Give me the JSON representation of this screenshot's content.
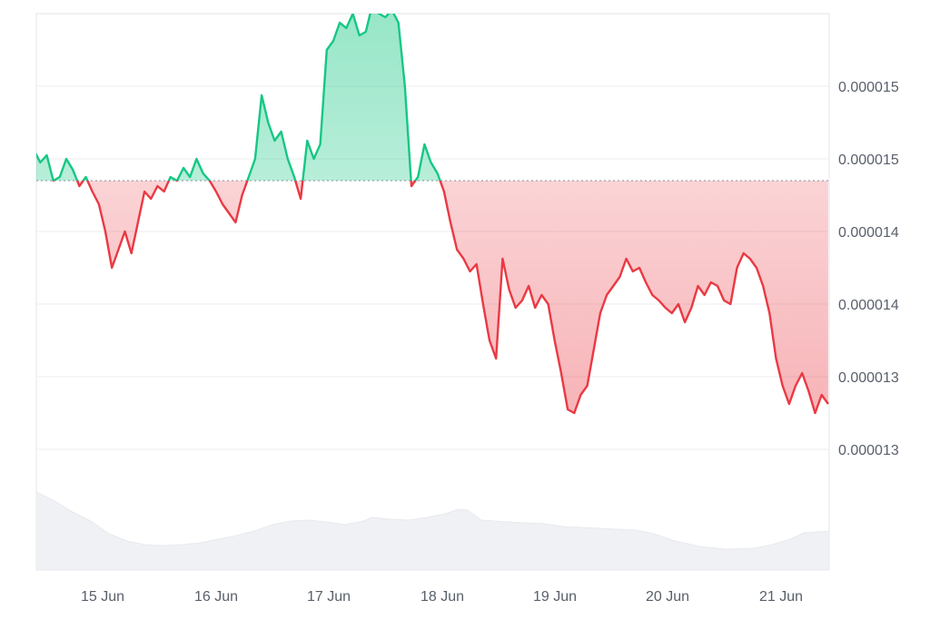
{
  "chart_data": {
    "type": "area",
    "title": "",
    "xlabel": "",
    "ylabel": "",
    "x_tick_labels": [
      "15 Jun",
      "16 Jun",
      "17 Jun",
      "18 Jun",
      "19 Jun",
      "20 Jun",
      "21 Jun"
    ],
    "y_tick_labels": [
      "0.000015",
      "0.000015",
      "0.000014",
      "0.000014",
      "0.000013",
      "0.000013"
    ],
    "y_tick_values": [
      1.52e-05,
      1.48e-05,
      1.44e-05,
      1.4e-05,
      1.36e-05,
      1.32e-05
    ],
    "ylim": [
      1.3e-05,
      1.56e-05
    ],
    "xlim": [
      "14 Jun 08:00",
      "21 Jun 10:00"
    ],
    "baseline": 1.468e-05,
    "baseline_style": "dotted",
    "colors": {
      "above": "#16c784",
      "below": "#ea3943",
      "grid": "#eceef1",
      "volume": "#eff1f4",
      "text": "#59606b"
    },
    "grid": true,
    "y_axis_position": "right",
    "series": [
      {
        "values": [
          1.472e-05,
          1.485e-05,
          1.478e-05,
          1.482e-05,
          1.468e-05,
          1.47e-05,
          1.48e-05,
          1.474e-05,
          1.465e-05,
          1.47e-05,
          1.462e-05,
          1.455e-05,
          1.44e-05,
          1.42e-05,
          1.43e-05,
          1.44e-05,
          1.428e-05,
          1.445e-05,
          1.462e-05,
          1.458e-05,
          1.465e-05,
          1.462e-05,
          1.47e-05,
          1.468e-05,
          1.475e-05,
          1.47e-05,
          1.48e-05,
          1.472e-05,
          1.468e-05,
          1.462e-05,
          1.455e-05,
          1.45e-05,
          1.445e-05,
          1.46e-05,
          1.47e-05,
          1.48e-05,
          1.515e-05,
          1.5e-05,
          1.49e-05,
          1.495e-05,
          1.48e-05,
          1.47e-05,
          1.458e-05,
          1.49e-05,
          1.48e-05,
          1.488e-05,
          1.54e-05,
          1.545e-05,
          1.555e-05,
          1.552e-05,
          1.56e-05,
          1.548e-05,
          1.55e-05,
          1.565e-05,
          1.56e-05,
          1.558e-05,
          1.562e-05,
          1.555e-05,
          1.52e-05,
          1.465e-05,
          1.47e-05,
          1.488e-05,
          1.478e-05,
          1.472e-05,
          1.462e-05,
          1.445e-05,
          1.43e-05,
          1.425e-05,
          1.418e-05,
          1.422e-05,
          1.4e-05,
          1.38e-05,
          1.37e-05,
          1.425e-05,
          1.408e-05,
          1.398e-05,
          1.402e-05,
          1.41e-05,
          1.398e-05,
          1.405e-05,
          1.4e-05,
          1.38e-05,
          1.362e-05,
          1.342e-05,
          1.34e-05,
          1.35e-05,
          1.355e-05,
          1.375e-05,
          1.395e-05,
          1.405e-05,
          1.41e-05,
          1.415e-05,
          1.425e-05,
          1.418e-05,
          1.42e-05,
          1.412e-05,
          1.405e-05,
          1.402e-05,
          1.398e-05,
          1.395e-05,
          1.4e-05,
          1.39e-05,
          1.398e-05,
          1.41e-05,
          1.405e-05,
          1.412e-05,
          1.41e-05,
          1.402e-05,
          1.4e-05,
          1.42e-05,
          1.428e-05,
          1.425e-05,
          1.42e-05,
          1.41e-05,
          1.395e-05,
          1.37e-05,
          1.355e-05,
          1.345e-05,
          1.355e-05,
          1.362e-05,
          1.352e-05,
          1.34e-05,
          1.35e-05,
          1.345e-05
        ]
      }
    ]
  }
}
